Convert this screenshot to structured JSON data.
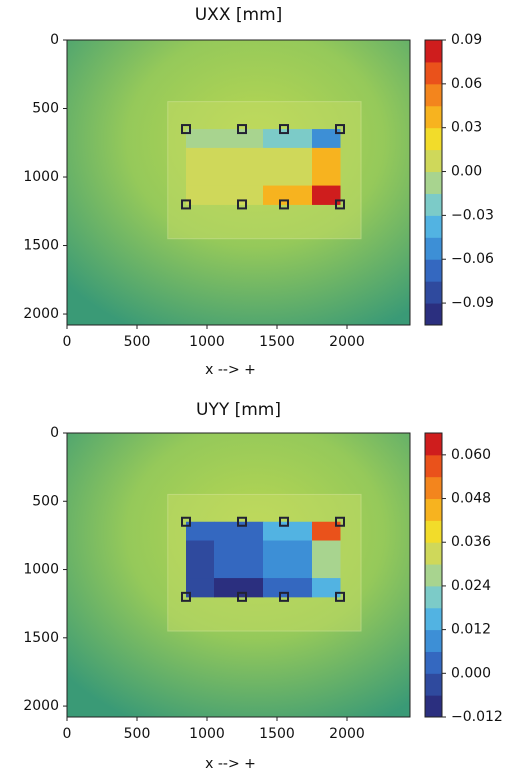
{
  "chart_data": [
    {
      "type": "contour",
      "title": "UXX [mm]",
      "x_label": "x --> +",
      "xlim": [
        0,
        2450
      ],
      "ylim": [
        2080,
        0
      ],
      "xticks": [
        0,
        500,
        1000,
        1500,
        2000
      ],
      "yticks": [
        0,
        500,
        1000,
        1500,
        2000
      ],
      "x": [
        850,
        1250,
        1550,
        1950
      ],
      "y": [
        650,
        925,
        1200
      ],
      "z": [
        [
          0.0,
          0.0,
          -0.02,
          -0.05
        ],
        [
          0.005,
          0.005,
          0.015,
          0.03
        ],
        [
          0.005,
          0.005,
          0.04,
          0.08
        ]
      ],
      "colorbar": {
        "lim": [
          -0.105,
          0.09
        ],
        "ticks": [
          {
            "value": -0.09,
            "label": "−0.09"
          },
          {
            "value": -0.06,
            "label": "−0.06"
          },
          {
            "value": -0.03,
            "label": "−0.03"
          },
          {
            "value": 0,
            "label": "0.00"
          },
          0.03,
          0.06,
          0.09
        ],
        "colors": [
          "#2b2f7f",
          "#2f4a9e",
          "#3468c0",
          "#3d8fd6",
          "#52b3e2",
          "#7ccbc8",
          "#a8d48f",
          "#cfd85a",
          "#f2dc2a",
          "#f7b31f",
          "#f3851d",
          "#ea521b",
          "#cf1d1d"
        ]
      }
    },
    {
      "type": "contour",
      "title": "UYY [mm]",
      "x_label": "x --> +",
      "xlim": [
        0,
        2450
      ],
      "ylim": [
        2080,
        0
      ],
      "xticks": [
        0,
        500,
        1000,
        1500,
        2000
      ],
      "yticks": [
        0,
        500,
        1000,
        1500,
        2000
      ],
      "x": [
        850,
        1250,
        1550,
        1950
      ],
      "y": [
        650,
        925,
        1200
      ],
      "z": [
        [
          0.0,
          0.0,
          0.012,
          0.058
        ],
        [
          -0.005,
          0.0,
          0.006,
          0.024
        ],
        [
          -0.005,
          -0.01,
          0.0,
          0.012
        ]
      ],
      "colorbar": {
        "lim": [
          -0.012,
          0.066
        ],
        "ticks": [
          {
            "value": -0.012,
            "label": "−0.012"
          },
          {
            "value": 0,
            "label": "0.000"
          },
          0.012,
          0.024,
          0.036,
          0.048,
          {
            "value": 0.06,
            "label": "0.060"
          }
        ],
        "colors": [
          "#2b2f7f",
          "#2f4a9e",
          "#3468c0",
          "#3d8fd6",
          "#52b3e2",
          "#7ccbc8",
          "#a8d48f",
          "#cfd85a",
          "#f2dc2a",
          "#f7b31f",
          "#f3851d",
          "#ea521b",
          "#cf1d1d"
        ]
      }
    }
  ]
}
